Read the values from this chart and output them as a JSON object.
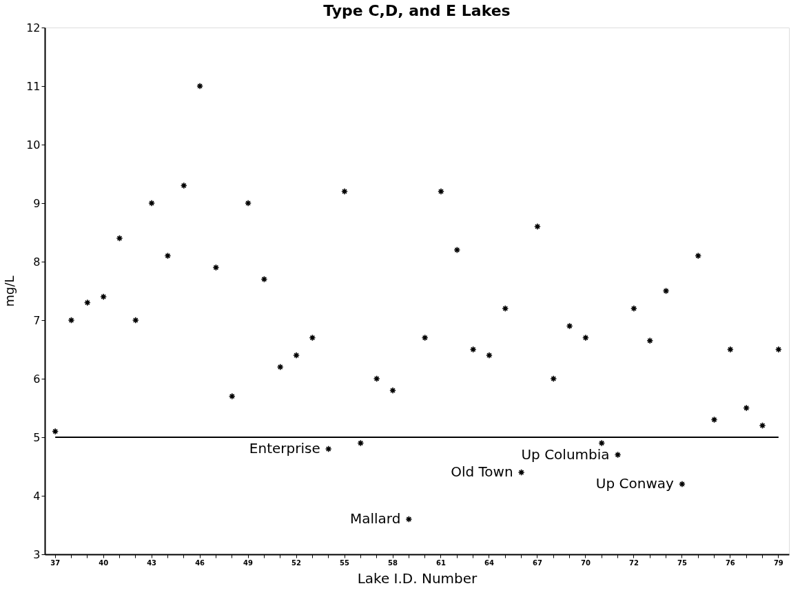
{
  "chart_data": {
    "type": "scatter",
    "title": "Type C,D, and E Lakes",
    "xlabel": "Lake I.D. Number",
    "ylabel": "mg/L",
    "categories": [
      "37",
      null,
      null,
      "40",
      null,
      null,
      "43",
      null,
      null,
      "46",
      null,
      null,
      "49",
      null,
      null,
      "52",
      null,
      null,
      "55",
      null,
      null,
      "58",
      null,
      null,
      "61",
      null,
      null,
      "64",
      null,
      null,
      "67",
      null,
      null,
      "70",
      null,
      null,
      "72",
      null,
      null,
      "75",
      null,
      null,
      "76",
      null,
      null,
      "79"
    ],
    "values": [
      5.1,
      7.0,
      7.3,
      7.4,
      8.4,
      7.0,
      9.0,
      8.1,
      9.3,
      11.0,
      7.9,
      5.7,
      9.0,
      7.7,
      6.2,
      6.4,
      6.7,
      4.8,
      9.2,
      4.9,
      6.0,
      5.8,
      3.6,
      6.7,
      9.2,
      8.2,
      6.5,
      6.4,
      7.2,
      4.4,
      8.6,
      6.0,
      6.9,
      6.7,
      4.9,
      4.7,
      7.2,
      6.65,
      7.5,
      4.2,
      8.1,
      5.3,
      6.5,
      5.5,
      5.2,
      6.5
    ],
    "value_labels": [
      null,
      null,
      null,
      null,
      null,
      null,
      null,
      null,
      null,
      null,
      null,
      null,
      null,
      null,
      null,
      null,
      null,
      "Enterprise",
      null,
      null,
      null,
      null,
      "Mallard",
      null,
      null,
      null,
      null,
      null,
      null,
      "Old Town",
      null,
      null,
      null,
      null,
      null,
      "Up Columbia",
      null,
      null,
      null,
      "Up Conway",
      null,
      null,
      null,
      null,
      null,
      null
    ],
    "color": "#000000",
    "marker": "cross",
    "ylim": [
      3,
      12
    ],
    "yticks": [
      3,
      4,
      5,
      6,
      7,
      8,
      9,
      10,
      11,
      12
    ],
    "grid": false,
    "ref_lines": [
      {
        "axis": "y",
        "value": 5,
        "color": "#000000"
      }
    ]
  }
}
